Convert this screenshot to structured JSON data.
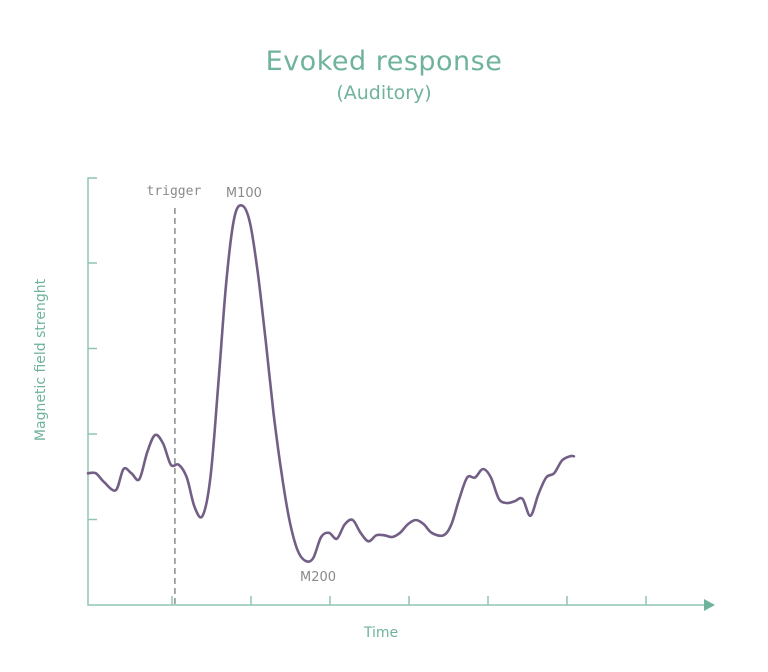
{
  "chart_data": {
    "type": "line",
    "title": "Evoked response",
    "subtitle": "(Auditory)",
    "xlabel": "Time",
    "ylabel": "Magnetic field strenght",
    "x_tick_count": 8,
    "y_tick_count": 5,
    "annotations": [
      {
        "label": "trigger",
        "x": 1.1
      },
      {
        "label": "M100",
        "x": 2.1
      },
      {
        "label": "M200",
        "x": 3.0
      }
    ],
    "series": [
      {
        "points": [
          [
            0.0,
            1.55
          ],
          [
            0.1,
            1.55
          ],
          [
            0.2,
            1.45
          ],
          [
            0.35,
            1.35
          ],
          [
            0.45,
            1.6
          ],
          [
            0.55,
            1.55
          ],
          [
            0.65,
            1.48
          ],
          [
            0.75,
            1.8
          ],
          [
            0.85,
            2.0
          ],
          [
            0.95,
            1.9
          ],
          [
            1.05,
            1.65
          ],
          [
            1.15,
            1.65
          ],
          [
            1.25,
            1.5
          ],
          [
            1.35,
            1.15
          ],
          [
            1.45,
            1.05
          ],
          [
            1.55,
            1.5
          ],
          [
            1.65,
            2.6
          ],
          [
            1.75,
            3.8
          ],
          [
            1.85,
            4.55
          ],
          [
            1.95,
            4.7
          ],
          [
            2.05,
            4.5
          ],
          [
            2.15,
            3.9
          ],
          [
            2.25,
            3.1
          ],
          [
            2.35,
            2.25
          ],
          [
            2.45,
            1.55
          ],
          [
            2.55,
            1.0
          ],
          [
            2.65,
            0.65
          ],
          [
            2.75,
            0.52
          ],
          [
            2.85,
            0.55
          ],
          [
            2.95,
            0.8
          ],
          [
            3.05,
            0.85
          ],
          [
            3.15,
            0.78
          ],
          [
            3.25,
            0.95
          ],
          [
            3.35,
            1.0
          ],
          [
            3.45,
            0.85
          ],
          [
            3.55,
            0.75
          ],
          [
            3.65,
            0.82
          ],
          [
            3.75,
            0.82
          ],
          [
            3.85,
            0.8
          ],
          [
            3.95,
            0.85
          ],
          [
            4.05,
            0.95
          ],
          [
            4.15,
            1.0
          ],
          [
            4.25,
            0.95
          ],
          [
            4.35,
            0.85
          ],
          [
            4.5,
            0.82
          ],
          [
            4.6,
            0.95
          ],
          [
            4.7,
            1.25
          ],
          [
            4.8,
            1.5
          ],
          [
            4.9,
            1.5
          ],
          [
            5.0,
            1.6
          ],
          [
            5.1,
            1.5
          ],
          [
            5.2,
            1.25
          ],
          [
            5.3,
            1.2
          ],
          [
            5.4,
            1.22
          ],
          [
            5.5,
            1.25
          ],
          [
            5.6,
            1.05
          ],
          [
            5.7,
            1.3
          ],
          [
            5.8,
            1.5
          ],
          [
            5.9,
            1.55
          ],
          [
            6.0,
            1.7
          ],
          [
            6.1,
            1.75
          ],
          [
            6.15,
            1.75
          ]
        ]
      }
    ]
  }
}
